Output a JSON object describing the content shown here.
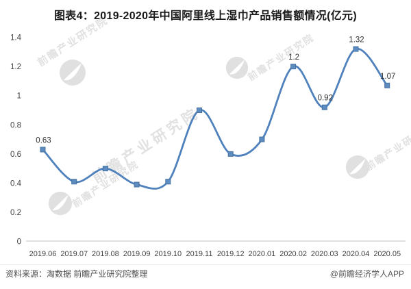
{
  "page": {
    "title": "图表4：2019-2020年中国阿里线上湿巾产品销售额情况(亿元)"
  },
  "footer": {
    "source": "资料来源：淘数据 前瞻产业研究院整理",
    "credit": "@前瞻经济学人APP"
  },
  "watermark": {
    "text": "前瞻产业研究院",
    "logo": "qianzhan-sphere-logo"
  },
  "colors": {
    "line": "#4f81bd",
    "marker_fill": "#5e8cc0",
    "marker_stroke": "#46719f",
    "axis_line": "#d5d5d5",
    "tick_text": "#3f3f3f",
    "point_label_text": "#333333",
    "title_text": "#1b1b1b",
    "footer_text": "#4d4d4d"
  },
  "chart_data": {
    "type": "line",
    "title": "图表4：2019-2020年中国阿里线上湿巾产品销售额情况(亿元)",
    "xlabel": "",
    "ylabel": "",
    "x": [
      "2019.06",
      "2019.07",
      "2019.08",
      "2019.09",
      "2019.10",
      "2019.11",
      "2019.12",
      "2020.01",
      "2020.02",
      "2020.03",
      "2020.04",
      "2020.05"
    ],
    "values": [
      0.63,
      0.41,
      0.5,
      0.39,
      0.41,
      0.9,
      0.6,
      0.7,
      1.2,
      0.92,
      1.32,
      1.07
    ],
    "point_labels": [
      "0.63",
      null,
      null,
      null,
      null,
      null,
      null,
      null,
      "1.2",
      "0.92",
      "1.32",
      "1.07"
    ],
    "ylim": [
      0,
      1.4
    ],
    "yticks": [
      "0",
      "0.2",
      "0.4",
      "0.6",
      "0.8",
      "1",
      "1.2",
      "1.4"
    ],
    "grid": false,
    "legend": null,
    "smooth": true,
    "marker": "square"
  }
}
